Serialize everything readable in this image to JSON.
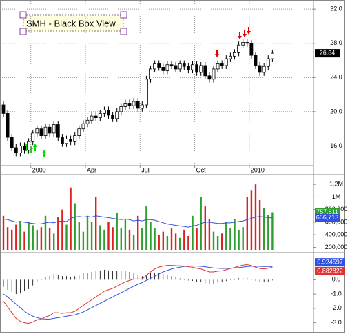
{
  "chart_data": [
    {
      "type": "candlestick",
      "title": "SMH - Black Box View",
      "categories": [
        null,
        null,
        null,
        null,
        null,
        null,
        null,
        "2009",
        null,
        null,
        null,
        null,
        null,
        null,
        null,
        null,
        null,
        null,
        null,
        null,
        "Apr",
        null,
        null,
        null,
        null,
        null,
        null,
        null,
        null,
        null,
        null,
        null,
        null,
        "Jul",
        null,
        null,
        null,
        null,
        null,
        null,
        null,
        null,
        null,
        null,
        null,
        null,
        "Oct",
        null,
        null,
        null,
        null,
        null,
        null,
        null,
        null,
        null,
        null,
        null,
        null,
        "2010",
        null,
        null,
        null,
        null,
        null
      ],
      "open": [
        20.8,
        19.8,
        17.0,
        15.8,
        15.2,
        16.0,
        15.5,
        16.5,
        17.5,
        18.0,
        17.2,
        18.2,
        17.5,
        18.5,
        17.0,
        16.3,
        16.8,
        16.5,
        17.2,
        18.0,
        18.6,
        19.0,
        19.5,
        19.3,
        19.8,
        20.2,
        19.6,
        19.2,
        20.0,
        20.6,
        21.0,
        20.7,
        21.2,
        20.4,
        20.8,
        23.8,
        25.0,
        25.6,
        25.2,
        24.8,
        25.5,
        25.4,
        25.0,
        25.6,
        25.3,
        24.9,
        25.5,
        24.6,
        25.4,
        24.2,
        23.8,
        25.0,
        25.6,
        25.4,
        26.2,
        26.5,
        26.9,
        27.8,
        28.1,
        28.0,
        26.6,
        25.4,
        24.6,
        25.3,
        26.2
      ],
      "high": [
        21.2,
        20.2,
        17.4,
        16.2,
        16.4,
        16.4,
        16.9,
        17.9,
        18.4,
        18.4,
        18.6,
        18.6,
        18.9,
        18.9,
        17.4,
        17.2,
        17.2,
        17.6,
        18.4,
        19.0,
        19.4,
        19.9,
        19.9,
        20.2,
        20.6,
        20.6,
        20.0,
        20.4,
        21.0,
        21.4,
        21.4,
        21.6,
        21.6,
        21.2,
        24.2,
        25.4,
        26.0,
        26.0,
        25.6,
        25.9,
        25.9,
        25.8,
        26.0,
        26.0,
        25.7,
        25.9,
        25.9,
        25.8,
        25.8,
        24.6,
        25.4,
        26.0,
        26.0,
        26.6,
        26.9,
        27.3,
        28.2,
        28.5,
        28.5,
        28.4,
        27.0,
        25.8,
        25.7,
        26.6,
        27.2
      ],
      "low": [
        19.4,
        16.6,
        15.4,
        14.8,
        14.8,
        15.1,
        15.1,
        16.1,
        17.1,
        16.8,
        16.8,
        17.1,
        17.1,
        16.6,
        15.9,
        15.9,
        16.1,
        16.1,
        16.8,
        17.6,
        18.2,
        18.6,
        18.9,
        18.9,
        19.4,
        19.2,
        18.8,
        18.8,
        19.6,
        20.2,
        20.3,
        20.3,
        20.0,
        20.0,
        20.4,
        23.4,
        24.6,
        24.8,
        24.4,
        24.4,
        25.0,
        24.6,
        24.6,
        24.9,
        24.5,
        24.5,
        24.2,
        24.2,
        23.8,
        23.4,
        23.4,
        24.6,
        25.0,
        25.0,
        25.8,
        26.1,
        26.5,
        27.4,
        27.6,
        26.2,
        25.0,
        24.2,
        24.2,
        24.9,
        25.8
      ],
      "close": [
        19.8,
        17.0,
        15.8,
        15.2,
        16.0,
        15.5,
        16.5,
        17.5,
        18.0,
        17.2,
        18.2,
        17.5,
        18.5,
        17.0,
        16.3,
        16.8,
        16.5,
        17.2,
        18.0,
        18.6,
        19.0,
        19.5,
        19.3,
        19.8,
        20.2,
        19.6,
        19.2,
        20.0,
        20.6,
        21.0,
        20.7,
        21.2,
        20.4,
        20.8,
        23.8,
        25.0,
        25.6,
        25.2,
        24.8,
        25.5,
        25.4,
        25.0,
        25.6,
        25.3,
        24.9,
        25.5,
        24.6,
        25.4,
        24.2,
        23.8,
        25.0,
        25.6,
        25.4,
        26.2,
        26.5,
        26.9,
        27.8,
        28.1,
        28.0,
        26.6,
        25.4,
        24.6,
        25.3,
        26.2,
        26.84
      ],
      "up_color": "#ffffff",
      "down_color": "#000000",
      "ylim": [
        13.7,
        32.9
      ],
      "yticks": [
        {
          "value": 16,
          "label": "16.0"
        },
        {
          "value": 20,
          "label": "20.0"
        },
        {
          "value": 24,
          "label": "24.0"
        },
        {
          "value": 28,
          "label": "28.0"
        },
        {
          "value": 32,
          "label": "32.0"
        }
      ],
      "grid": true
    },
    {
      "type": "volume",
      "series": [
        {
          "color": "#2e9e2e",
          "down_color": "#e02020",
          "values": [
            700000,
            520000,
            480000,
            560000,
            620000,
            450000,
            600000,
            550000,
            480000,
            520000,
            700000,
            500000,
            420000,
            680000,
            800000,
            560000,
            1150000,
            900000,
            600000,
            450000,
            700000,
            600000,
            1000000,
            550000,
            480000,
            600000,
            520000,
            750000,
            500000,
            650000,
            480000,
            400000,
            700000,
            500000,
            850000,
            600000,
            500000,
            400000,
            450000,
            380000,
            500000,
            420000,
            350000,
            480000,
            380000,
            700000,
            500000,
            1000000,
            850000,
            650000,
            450000,
            380000,
            420000,
            600000,
            500000,
            650000,
            480000,
            520000,
            1000000,
            1100000,
            1200000,
            950000,
            820000,
            720000,
            757611
          ],
          "last_label": "757,611"
        },
        {
          "color": "#3050e0",
          "values": [
            650000,
            640000,
            620000,
            600000,
            610000,
            600000,
            590000,
            580000,
            570000,
            575000,
            590000,
            600000,
            590000,
            610000,
            620000,
            610000,
            660000,
            680000,
            690000,
            680000,
            690000,
            680000,
            700000,
            690000,
            680000,
            670000,
            660000,
            650000,
            640000,
            650000,
            640000,
            620000,
            630000,
            620000,
            640000,
            640000,
            630000,
            610000,
            590000,
            570000,
            560000,
            550000,
            540000,
            530000,
            520000,
            540000,
            550000,
            580000,
            600000,
            600000,
            590000,
            580000,
            580000,
            590000,
            590000,
            600000,
            610000,
            620000,
            640000,
            660000,
            680000,
            690000,
            680000,
            670000,
            666713
          ],
          "last_label": "666,713"
        }
      ],
      "ylim": [
        150000,
        1300000
      ],
      "yticks": [
        {
          "value": 200000,
          "label": "200,000"
        },
        {
          "value": 400000,
          "label": "400,000"
        },
        {
          "value": 600000,
          "label": "600,000"
        },
        {
          "value": 800000,
          "label": "800,000"
        },
        {
          "value": 1000000,
          "label": "1M"
        },
        {
          "value": 1200000,
          "label": "1.2M"
        }
      ]
    },
    {
      "type": "macd",
      "series": [
        {
          "color": "#3050e0",
          "values": [
            -1.0,
            -1.2,
            -1.45,
            -1.7,
            -1.95,
            -2.2,
            -2.4,
            -2.55,
            -2.65,
            -2.72,
            -2.75,
            -2.75,
            -2.7,
            -2.65,
            -2.6,
            -2.55,
            -2.5,
            -2.45,
            -2.35,
            -2.25,
            -2.1,
            -1.95,
            -1.8,
            -1.65,
            -1.5,
            -1.35,
            -1.2,
            -1.05,
            -0.9,
            -0.75,
            -0.6,
            -0.45,
            -0.32,
            -0.2,
            -0.05,
            0.1,
            0.25,
            0.4,
            0.55,
            0.65,
            0.75,
            0.82,
            0.88,
            0.92,
            0.95,
            0.96,
            0.95,
            0.93,
            0.9,
            0.86,
            0.82,
            0.8,
            0.79,
            0.79,
            0.8,
            0.82,
            0.85,
            0.88,
            0.92,
            0.94,
            0.94,
            0.93,
            0.92,
            0.92,
            0.924597
          ]
        },
        {
          "color": "#e03030",
          "values": [
            -1.5,
            -1.9,
            -2.3,
            -2.7,
            -2.9,
            -3.0,
            -3.05,
            -2.95,
            -2.8,
            -2.75,
            -2.6,
            -2.5,
            -2.3,
            -2.3,
            -2.35,
            -2.3,
            -2.3,
            -2.2,
            -2.0,
            -1.8,
            -1.6,
            -1.4,
            -1.2,
            -1.0,
            -0.8,
            -0.7,
            -0.6,
            -0.45,
            -0.3,
            -0.15,
            -0.05,
            0.05,
            0.05,
            0.05,
            0.3,
            0.55,
            0.75,
            0.88,
            0.95,
            1.0,
            1.0,
            0.98,
            0.97,
            0.95,
            0.9,
            0.88,
            0.8,
            0.75,
            0.65,
            0.55,
            0.55,
            0.6,
            0.62,
            0.7,
            0.78,
            0.85,
            0.95,
            1.02,
            1.05,
            0.98,
            0.88,
            0.78,
            0.76,
            0.8,
            0.882822
          ]
        }
      ],
      "histogram": {
        "color": "#000000",
        "values": [
          -0.5,
          -0.7,
          -0.85,
          -1.0,
          -0.95,
          -0.8,
          -0.65,
          -0.4,
          -0.15,
          -0.03,
          0.15,
          0.25,
          0.4,
          0.35,
          0.25,
          0.25,
          0.2,
          0.25,
          0.35,
          0.45,
          0.5,
          0.55,
          0.6,
          0.65,
          0.7,
          0.65,
          0.6,
          0.6,
          0.6,
          0.6,
          0.55,
          0.5,
          0.37,
          0.25,
          0.35,
          0.45,
          0.5,
          0.48,
          0.4,
          0.35,
          0.25,
          0.16,
          0.09,
          0.03,
          -0.05,
          -0.08,
          -0.15,
          -0.18,
          -0.25,
          -0.31,
          -0.27,
          -0.2,
          -0.17,
          -0.09,
          -0.02,
          0.03,
          0.1,
          0.14,
          0.13,
          0.04,
          -0.06,
          -0.15,
          -0.16,
          -0.12,
          -0.04
        ]
      },
      "ylim": [
        -3.5,
        1.8
      ],
      "yticks": [
        {
          "value": -3,
          "label": "-3.0"
        },
        {
          "value": -2,
          "label": "-2.0"
        },
        {
          "value": -1,
          "label": "-1.0"
        },
        {
          "value": 0,
          "label": "0.0"
        }
      ]
    }
  ]
}
